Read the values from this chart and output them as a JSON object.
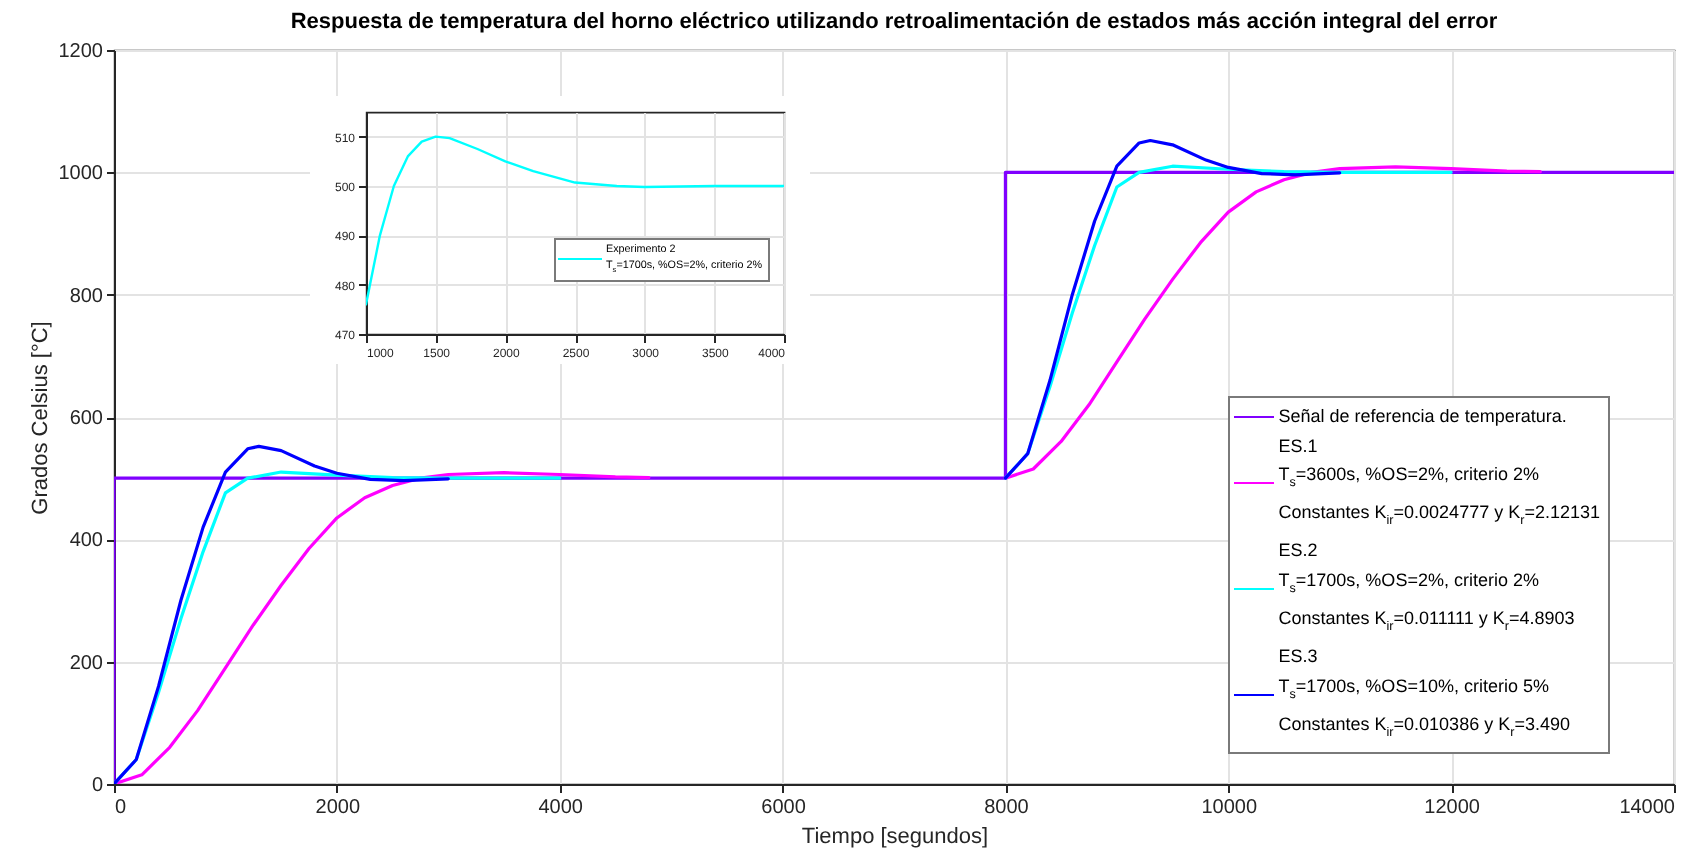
{
  "chart_data": [
    {
      "type": "line",
      "title": "Respuesta de temperatura del horno eléctrico utilizando retroalimentación de estados más acción integral del error",
      "xlabel": "Tiempo [segundos]",
      "ylabel": "Grados Celsius [°C]",
      "xlim": [
        0,
        14000
      ],
      "ylim": [
        0,
        1200
      ],
      "xticks": [
        0,
        2000,
        4000,
        6000,
        8000,
        10000,
        12000,
        14000
      ],
      "yticks": [
        0,
        200,
        400,
        600,
        800,
        1000,
        1200
      ],
      "grid": true,
      "legend": "bottom right",
      "series": [
        {
          "name": "Señal de referencia de temperatura.",
          "color": "#8000ff",
          "x": [
            0,
            0,
            8000,
            8000,
            14000
          ],
          "values": [
            0,
            500,
            500,
            1000,
            1000
          ]
        },
        {
          "name": "ES.1\nT$_{s}$=3600s, %OS=2%, criterio 2%\nConstantes K$_{ir}$=0.0024777 y K$_{r}$=2.12131",
          "color": "#ff00ff",
          "x": [
            0,
            250,
            500,
            750,
            1000,
            1250,
            1500,
            1750,
            2000,
            2250,
            2500,
            2750,
            3000,
            3500,
            4000,
            4500,
            4800,
            6000,
            8000,
            8250,
            8500,
            8750,
            9000,
            9250,
            9500,
            9750,
            10000,
            10250,
            10500,
            10750,
            11000,
            11500,
            12000,
            12500,
            12800
          ],
          "values": [
            0,
            15,
            60,
            120,
            190,
            260,
            325,
            385,
            435,
            468,
            488,
            500,
            506,
            509,
            506,
            502,
            501,
            null,
            500,
            515,
            560,
            620,
            690,
            760,
            825,
            885,
            935,
            968,
            988,
            1000,
            1006,
            1009,
            1006,
            1002,
            1001
          ]
        },
        {
          "name": "ES.2\nT$_{s}$=1700s, %OS=2%, criterio 2%\nConstantes K$_{ir}$=0.011111 y K$_{r}$=4.8903",
          "color": "#00ffff",
          "x": [
            0,
            200,
            400,
            600,
            800,
            1000,
            1200,
            1500,
            2000,
            2500,
            3000,
            3500,
            4000,
            6000,
            8000,
            8200,
            8400,
            8600,
            8800,
            9000,
            9200,
            9500,
            10000,
            10500,
            11000,
            11500,
            12000
          ],
          "values": [
            0,
            40,
            150,
            270,
            380,
            476,
            500,
            510,
            505,
            501,
            500,
            500,
            500,
            null,
            500,
            540,
            650,
            770,
            880,
            976,
            1000,
            1010,
            1005,
            1001,
            1000,
            1000,
            1000
          ]
        },
        {
          "name": "ES.3\nT$_{s}$=1700s, %OS=10%, criterio 5%\nConstantes K$_{ir}$=0.010386 y K$_{r}$=3.490",
          "color": "#0000ff",
          "x": [
            0,
            200,
            400,
            600,
            800,
            1000,
            1200,
            1300,
            1500,
            1800,
            2000,
            2300,
            2600,
            3000,
            6000,
            8000,
            8200,
            8400,
            8600,
            8800,
            9000,
            9200,
            9300,
            9500,
            9800,
            10000,
            10300,
            10600,
            11000
          ],
          "values": [
            0,
            40,
            160,
            300,
            420,
            510,
            548,
            552,
            545,
            520,
            508,
            498,
            496,
            499,
            null,
            500,
            540,
            660,
            800,
            920,
            1010,
            1048,
            1052,
            1045,
            1020,
            1008,
            998,
            996,
            999
          ]
        }
      ]
    },
    {
      "type": "line",
      "xlim": [
        1000,
        4000
      ],
      "ylim": [
        470,
        515
      ],
      "xticks": [
        1000,
        1500,
        2000,
        2500,
        3000,
        3500,
        4000
      ],
      "yticks": [
        470,
        480,
        490,
        500,
        510
      ],
      "grid": true,
      "legend": "bottom right",
      "series": [
        {
          "name": "Experimento 2\nT$_{s}$=1700s, %OS=2%, criterio 2%",
          "color": "#00ffff",
          "x": [
            1000,
            1100,
            1200,
            1300,
            1400,
            1500,
            1600,
            1800,
            2000,
            2200,
            2500,
            2800,
            3000,
            3500,
            4000
          ],
          "values": [
            476,
            490,
            500,
            506,
            509,
            510,
            509.7,
            507.5,
            505,
            503,
            500.7,
            500,
            499.8,
            500,
            500
          ]
        }
      ]
    }
  ]
}
